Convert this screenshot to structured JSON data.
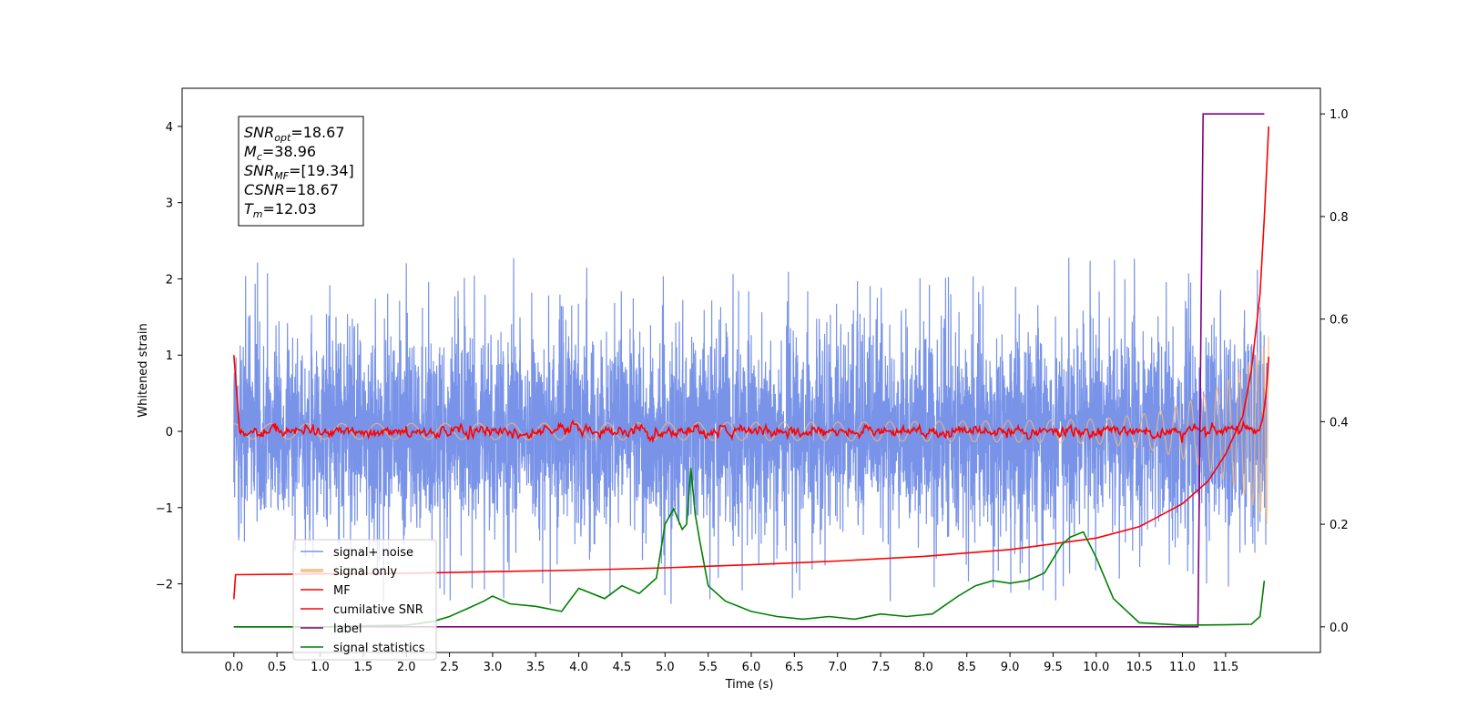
{
  "chart_data": {
    "type": "line",
    "xlabel": "Time (s)",
    "ylabel": "Whitened strain",
    "xlim": [
      -0.6,
      12.6
    ],
    "ylim": [
      -2.9,
      4.5
    ],
    "y2lim": [
      -0.05,
      1.05
    ],
    "x_ticks": [
      "0.0",
      "0.5",
      "1.0",
      "1.5",
      "2.0",
      "2.5",
      "3.0",
      "3.5",
      "4.0",
      "4.5",
      "5.0",
      "5.5",
      "6.0",
      "6.5",
      "7.0",
      "7.5",
      "8.0",
      "8.5",
      "9.0",
      "9.5",
      "10.0",
      "10.5",
      "11.0",
      "11.5"
    ],
    "y_ticks": [
      "4",
      "3",
      "2",
      "1",
      "0",
      "−1",
      "−2"
    ],
    "y2_ticks": [
      "1.0",
      "0.8",
      "0.6",
      "0.4",
      "0.2",
      "0.0"
    ],
    "grid": false,
    "legend_position": "lower-left",
    "annotation": [
      {
        "main": "SNR",
        "sub": "opt",
        "rest": "=18.67"
      },
      {
        "main": "M",
        "sub": "c",
        "rest": "=38.96"
      },
      {
        "main": "SNR",
        "sub": "MF",
        "rest": "=[19.34]"
      },
      {
        "main": "CSNR",
        "sub": "",
        "rest": "=18.67"
      },
      {
        "main": "T",
        "sub": "m",
        "rest": "=12.03"
      }
    ],
    "series": [
      {
        "name": "signal+ noise",
        "color": "#7893e8",
        "axis": "left",
        "style": "noise band ±1.4, spikes up to ±2.4",
        "x_range": [
          0.0,
          11.98
        ]
      },
      {
        "name": "signal only",
        "color": "#f5b87a",
        "axis": "left",
        "style": "chirp, amplitude rising to 1.8 at 12.0 s",
        "x_range": [
          0.0,
          12.0
        ]
      },
      {
        "name": "MF",
        "color": "#ff0000",
        "axis": "left",
        "style": "starts at 1.0, noisy about 0, rises to 1.0 at 12.0 s"
      },
      {
        "name": "cumilative SNR",
        "color": "#ff0000",
        "axis": "left",
        "x": [
          0.0,
          0.02,
          1.0,
          2.0,
          3.0,
          4.0,
          5.0,
          6.0,
          7.0,
          8.0,
          9.0,
          10.0,
          10.5,
          11.0,
          11.3,
          11.5,
          11.7,
          11.8,
          11.9,
          11.95,
          12.0
        ],
        "values": [
          -2.2,
          -1.88,
          -1.87,
          -1.86,
          -1.84,
          -1.82,
          -1.79,
          -1.75,
          -1.7,
          -1.64,
          -1.55,
          -1.4,
          -1.25,
          -0.95,
          -0.65,
          -0.3,
          0.2,
          0.8,
          1.8,
          2.8,
          4.0
        ]
      },
      {
        "name": "label",
        "color": "#800080",
        "axis": "right",
        "x": [
          0.0,
          11.18,
          11.24,
          11.95
        ],
        "values": [
          0.0,
          0.0,
          1.0,
          1.0
        ]
      },
      {
        "name": "signal statistics",
        "color": "#008000",
        "axis": "right",
        "x": [
          0.0,
          0.5,
          1.0,
          1.5,
          2.0,
          2.3,
          2.5,
          2.7,
          2.9,
          3.0,
          3.2,
          3.5,
          3.8,
          4.0,
          4.3,
          4.5,
          4.7,
          4.9,
          5.0,
          5.1,
          5.2,
          5.25,
          5.3,
          5.35,
          5.4,
          5.5,
          5.7,
          6.0,
          6.3,
          6.6,
          6.9,
          7.2,
          7.5,
          7.8,
          8.1,
          8.4,
          8.6,
          8.8,
          9.0,
          9.2,
          9.4,
          9.6,
          9.7,
          9.85,
          10.0,
          10.2,
          10.5,
          11.0,
          11.5,
          11.8,
          11.9,
          11.95
        ],
        "values": [
          0.0,
          0.0,
          0.0,
          0.002,
          0.003,
          0.01,
          0.02,
          0.035,
          0.05,
          0.06,
          0.045,
          0.04,
          0.03,
          0.075,
          0.055,
          0.08,
          0.065,
          0.095,
          0.2,
          0.23,
          0.19,
          0.2,
          0.31,
          0.22,
          0.17,
          0.08,
          0.05,
          0.03,
          0.02,
          0.015,
          0.02,
          0.015,
          0.025,
          0.02,
          0.025,
          0.06,
          0.08,
          0.09,
          0.085,
          0.09,
          0.105,
          0.16,
          0.175,
          0.185,
          0.135,
          0.055,
          0.008,
          0.003,
          0.004,
          0.005,
          0.02,
          0.09
        ]
      }
    ]
  }
}
